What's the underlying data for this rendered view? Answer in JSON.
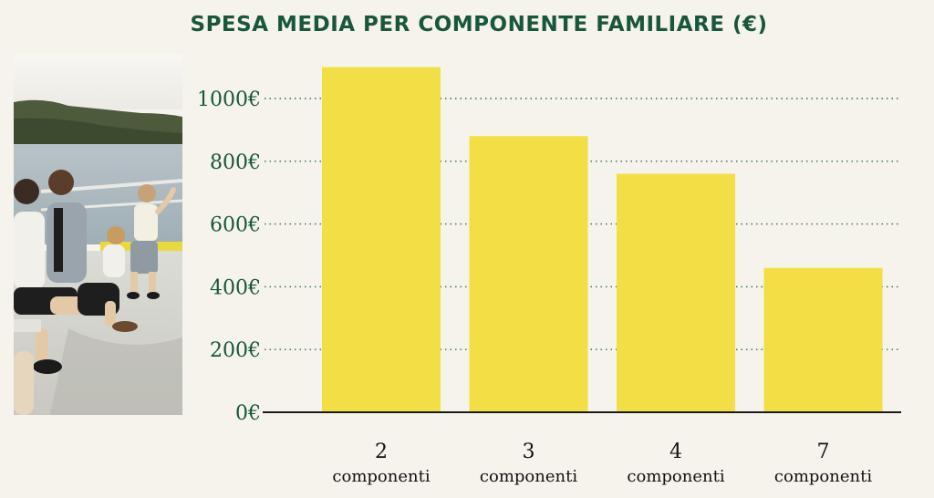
{
  "colors": {
    "background": "#f6f3ec",
    "accent": "#17573a",
    "bar": "#f2df45"
  },
  "image": {
    "kind": "photo-family-on-ferry-deck"
  },
  "chart_data": {
    "type": "bar",
    "title": "SPESA MEDIA PER COMPONENTE FAMILIARE (€)",
    "categories": [
      {
        "number": "2",
        "label": "componenti"
      },
      {
        "number": "3",
        "label": "componenti"
      },
      {
        "number": "4",
        "label": "componenti"
      },
      {
        "number": "7",
        "label": "componenti"
      }
    ],
    "values": [
      1100,
      880,
      760,
      460
    ],
    "yticks": [
      "0€",
      "200€",
      "400€",
      "600€",
      "800€",
      "1000€"
    ],
    "ylim": [
      0,
      1000
    ],
    "grid": "dotted horizontal",
    "legend": "none",
    "xlabel": "",
    "ylabel": ""
  }
}
